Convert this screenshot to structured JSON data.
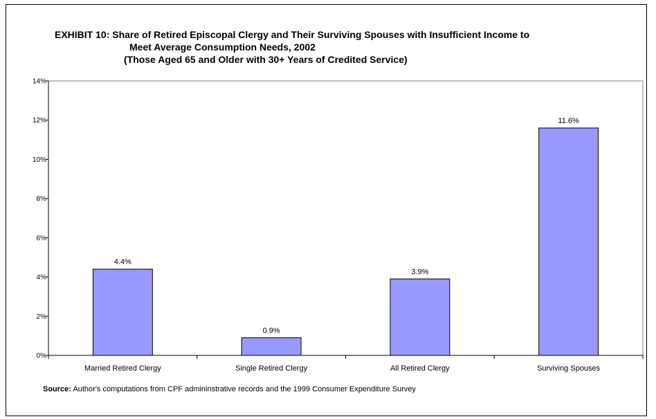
{
  "title": {
    "line1": "EXHIBIT 10:  Share of Retired Episcopal Clergy and Their Surviving Spouses with Insufficient Income to",
    "line2": "Meet Average Consumption Needs, 2002",
    "line3": "(Those Aged 65 and Older with 30+ Years of Credited Service)"
  },
  "source": {
    "label": "Source:",
    "text": " Author's computations from CPF admininstrative records and the 1999 Consumer Expenditure Survey"
  },
  "chart_data": {
    "type": "bar",
    "categories": [
      "Married Retired Clergy",
      "Single Retired Clergy",
      "All Retired Clergy",
      "Surviving Spouses"
    ],
    "values": [
      4.4,
      0.9,
      3.9,
      11.6
    ],
    "data_labels": [
      "4.4%",
      "0.9%",
      "3.9%",
      "11.6%"
    ],
    "ylim": [
      0,
      14
    ],
    "yticks": [
      0,
      2,
      4,
      6,
      8,
      10,
      12,
      14
    ],
    "ytick_labels": [
      "0%",
      "2%",
      "4%",
      "6%",
      "8%",
      "10%",
      "12%",
      "14%"
    ],
    "bar_color": "#9999ff",
    "grid": false,
    "legend": "none"
  }
}
